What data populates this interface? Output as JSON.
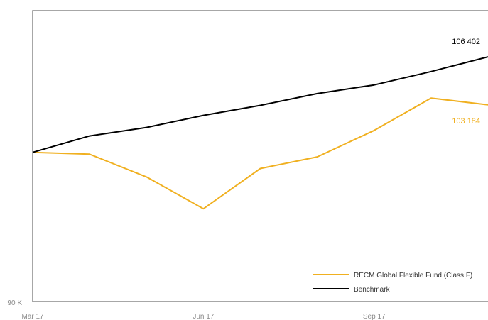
{
  "chart_data": {
    "type": "line",
    "x": [
      "Mar 17",
      "Apr 17",
      "May 17",
      "Jun 17",
      "Jul 17",
      "Aug 17",
      "Sep 17",
      "Oct 17",
      "Nov 17"
    ],
    "x_tick_labels": [
      "Mar 17",
      "Jun 17",
      "Sep 17"
    ],
    "y_tick_labels": [
      "90 K"
    ],
    "ylim": [
      90000,
      109500
    ],
    "grid": false,
    "legend_position": "bottom-right",
    "series": [
      {
        "name": "RECM Global Flexible Fund (Class F)",
        "color": "#f0b020",
        "values": [
          100000,
          99880,
          98350,
          96220,
          98920,
          99700,
          101470,
          103640,
          103184
        ],
        "end_label": "103 184"
      },
      {
        "name": "Benchmark",
        "color": "#000000",
        "values": [
          100000,
          101100,
          101670,
          102480,
          103150,
          103940,
          104520,
          105420,
          106402
        ],
        "end_label": "106 402"
      }
    ]
  }
}
